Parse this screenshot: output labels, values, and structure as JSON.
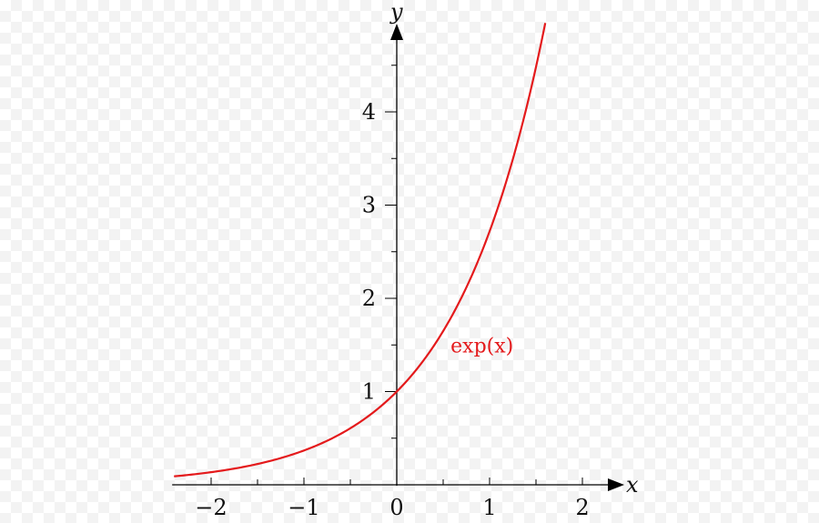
{
  "chart_data": {
    "type": "line",
    "title": "",
    "xlabel": "x",
    "ylabel": "y",
    "xlim": [
      -2.4,
      2.4
    ],
    "ylim": [
      -0.1,
      4.95
    ],
    "x_ticks": [
      -2,
      -1,
      0,
      1,
      2
    ],
    "x_tick_labels": [
      "−2",
      "−1",
      "0",
      "1",
      "2"
    ],
    "y_ticks": [
      1,
      2,
      3,
      4
    ],
    "y_tick_labels": [
      "1",
      "2",
      "3",
      "4"
    ],
    "grid": false,
    "series": [
      {
        "name": "exp(x)",
        "color": "#e41a1c",
        "function": "exp",
        "x_range": [
          -2.4,
          1.6
        ],
        "x": [
          -2.4,
          -2,
          -1.5,
          -1,
          -0.5,
          0,
          0.5,
          1,
          1.5,
          1.6
        ],
        "values": [
          0.09,
          0.14,
          0.22,
          0.37,
          0.61,
          1.0,
          1.65,
          2.72,
          4.48,
          4.95
        ]
      }
    ],
    "annotations": [
      {
        "text": "exp(x)",
        "at_x": 1.0,
        "at_y": 1.5,
        "color": "#e41a1c"
      }
    ]
  }
}
